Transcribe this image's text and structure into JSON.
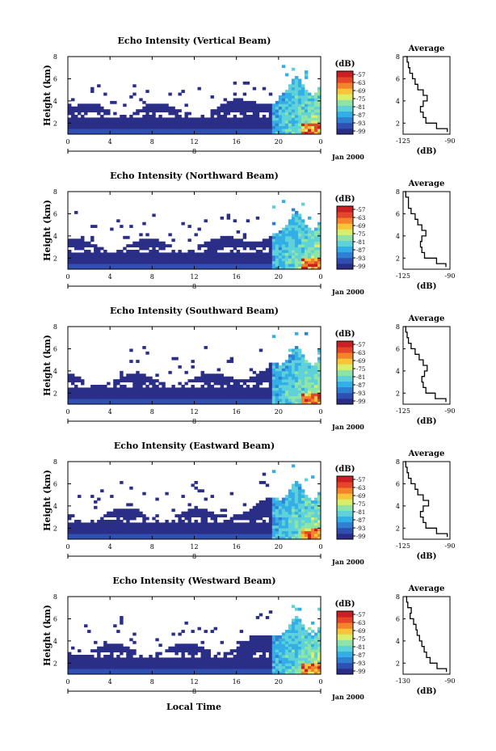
{
  "figure": {
    "xlabel": "Local Time",
    "colorbar_unit": "(dB)",
    "colorbar_ticks": [
      "-57",
      "-63",
      "-69",
      "-75",
      "-81",
      "-87",
      "-93",
      "-99"
    ],
    "colorbar_colors": [
      "#2b2e86",
      "#2f4fb3",
      "#2f7fd2",
      "#33aee6",
      "#5fd1d9",
      "#8de4a6",
      "#d9ee6a",
      "#f8c43a",
      "#f38429",
      "#e5462a",
      "#cc1f24"
    ],
    "date_label": "Jan 2000",
    "average_title": "Average",
    "average_xlabel": "(dB)",
    "background_color": "#38408a"
  },
  "chart_data": [
    {
      "type": "heatmap",
      "title": "Echo Intensity (Vertical Beam)",
      "ylabel": "Height (km)",
      "x_ticks": [
        "0",
        "4",
        "8",
        "12",
        "16",
        "20",
        "0"
      ],
      "day_label": "8",
      "y_ticks": [
        "2",
        "4",
        "6",
        "8"
      ],
      "xlim": [
        0,
        24
      ],
      "ylim": [
        1,
        8
      ],
      "average": {
        "xlim": [
          -125,
          -90
        ],
        "x_ticks": [
          "-125",
          "-90"
        ],
        "y_ticks": [
          "2",
          "4",
          "6",
          "8"
        ],
        "heights": [
          1.2,
          1.5,
          2,
          2.5,
          3,
          3.5,
          4,
          4.5,
          5,
          5.5,
          6,
          6.5,
          7,
          7.5,
          8
        ],
        "values": [
          -92,
          -100,
          -108,
          -110,
          -112,
          -110,
          -107,
          -110,
          -114,
          -116,
          -118,
          -120,
          -121,
          -122,
          -124
        ]
      }
    },
    {
      "type": "heatmap",
      "title": "Echo Intensity (Northward Beam)",
      "ylabel": "Height (km)",
      "x_ticks": [
        "0",
        "4",
        "8",
        "12",
        "16",
        "20",
        "0"
      ],
      "day_label": "8",
      "y_ticks": [
        "2",
        "4",
        "6",
        "8"
      ],
      "xlim": [
        0,
        24
      ],
      "ylim": [
        1,
        8
      ],
      "average": {
        "xlim": [
          -125,
          -90
        ],
        "x_ticks": [
          "-125",
          "-90"
        ],
        "y_ticks": [
          "2",
          "4",
          "6",
          "8"
        ],
        "heights": [
          1.2,
          1.5,
          2,
          2.5,
          3,
          3.5,
          4,
          4.5,
          5,
          5.5,
          6,
          6.5,
          7,
          7.5,
          8
        ],
        "values": [
          -93,
          -100,
          -109,
          -111,
          -112,
          -111,
          -108,
          -111,
          -114,
          -116,
          -119,
          -121,
          -121,
          -123,
          -124
        ]
      }
    },
    {
      "type": "heatmap",
      "title": "Echo Intensity (Southward Beam)",
      "ylabel": "Height (km)",
      "x_ticks": [
        "0",
        "4",
        "8",
        "12",
        "16",
        "20",
        "0"
      ],
      "day_label": "8",
      "y_ticks": [
        "2",
        "4",
        "6",
        "8"
      ],
      "xlim": [
        0,
        24
      ],
      "ylim": [
        1,
        8
      ],
      "average": {
        "xlim": [
          -125,
          -90
        ],
        "x_ticks": [
          "-125",
          "-90"
        ],
        "y_ticks": [
          "2",
          "4",
          "6",
          "8"
        ],
        "heights": [
          1.2,
          1.5,
          2,
          2.5,
          3,
          3.5,
          4,
          4.5,
          5,
          5.5,
          6,
          6.5,
          7,
          7.5,
          8
        ],
        "values": [
          -93,
          -101,
          -108,
          -110,
          -111,
          -109,
          -107,
          -110,
          -113,
          -116,
          -119,
          -121,
          -122,
          -123,
          -124
        ]
      }
    },
    {
      "type": "heatmap",
      "title": "Echo Intensity (Eastward Beam)",
      "ylabel": "Height (km)",
      "x_ticks": [
        "0",
        "4",
        "8",
        "12",
        "16",
        "20",
        "0"
      ],
      "day_label": "8",
      "y_ticks": [
        "2",
        "4",
        "6",
        "8"
      ],
      "xlim": [
        0,
        24
      ],
      "ylim": [
        1,
        8
      ],
      "average": {
        "xlim": [
          -125,
          -90
        ],
        "x_ticks": [
          "-125",
          "-90"
        ],
        "y_ticks": [
          "2",
          "4",
          "6",
          "8"
        ],
        "heights": [
          1.2,
          1.5,
          2,
          2.5,
          3,
          3.5,
          4,
          4.5,
          5,
          5.5,
          6,
          6.5,
          7,
          7.5,
          8
        ],
        "values": [
          -92,
          -100,
          -108,
          -110,
          -112,
          -110,
          -106,
          -110,
          -114,
          -116,
          -119,
          -121,
          -122,
          -123,
          -124
        ]
      }
    },
    {
      "type": "heatmap",
      "title": "Echo Intensity (Westward Beam)",
      "ylabel": "Height (km)",
      "x_ticks": [
        "0",
        "4",
        "8",
        "12",
        "16",
        "20",
        "0"
      ],
      "day_label": "8",
      "y_ticks": [
        "2",
        "4",
        "6",
        "8"
      ],
      "xlim": [
        0,
        24
      ],
      "ylim": [
        1,
        8
      ],
      "average": {
        "xlim": [
          -130,
          -90
        ],
        "x_ticks": [
          "-130",
          "-90"
        ],
        "y_ticks": [
          "2",
          "4",
          "6",
          "8"
        ],
        "heights": [
          1.2,
          1.5,
          2,
          2.5,
          3,
          3.5,
          4,
          4.5,
          5,
          5.5,
          6,
          6.5,
          7,
          7.5,
          8
        ],
        "values": [
          -93,
          -101,
          -107,
          -110,
          -112,
          -114,
          -116,
          -118,
          -119,
          -121,
          -124,
          -123,
          -126,
          -127,
          -128
        ]
      }
    }
  ]
}
